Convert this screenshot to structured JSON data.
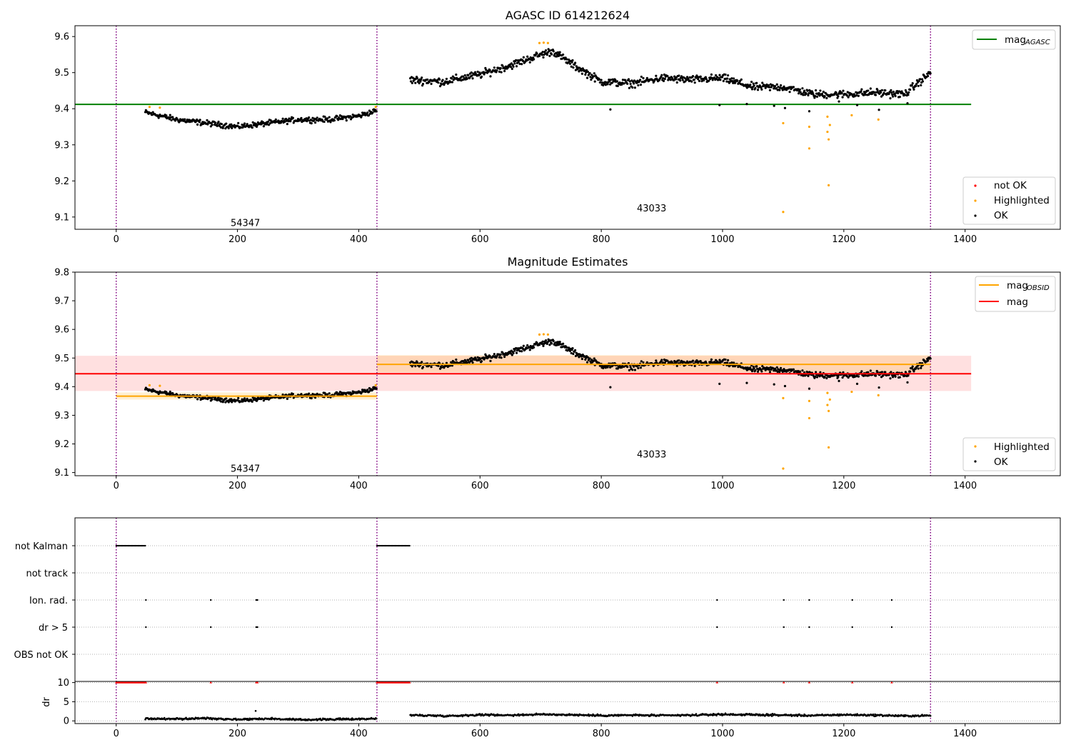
{
  "chart_data": [
    {
      "type": "scatter",
      "title": "AGASC ID 614212624",
      "xlim": [
        -68,
        1557
      ],
      "ylim": [
        9.066,
        9.63
      ],
      "xticks": [
        0,
        200,
        400,
        600,
        800,
        1000,
        1200,
        1400
      ],
      "yticks": [
        9.1,
        9.2,
        9.3,
        9.4,
        9.5,
        9.6
      ],
      "obsid_boundaries": [
        0,
        430,
        1343
      ],
      "obsid_labels": [
        {
          "text": "54347",
          "x": 213,
          "y": 9.085
        },
        {
          "text": "43033",
          "x": 883,
          "y": 9.125
        }
      ],
      "reference_lines": [
        {
          "name": "mag_AGASC",
          "value": 9.412,
          "x_range": [
            -68,
            1410
          ],
          "color": "#008000"
        }
      ],
      "legend_top": [
        {
          "label": "mag",
          "sub": "AGASC",
          "color": "#008000",
          "kind": "line"
        }
      ],
      "legend_bottom": [
        {
          "label": "not OK",
          "color": "#ff0000",
          "kind": "dot"
        },
        {
          "label": "Highlighted",
          "color": "#ffa500",
          "kind": "dot"
        },
        {
          "label": "OK",
          "color": "#000000",
          "kind": "dot"
        }
      ],
      "series": [
        {
          "name": "OK",
          "color": "#000000",
          "segments": [
            {
              "x": [
                48,
                100,
                150,
                200,
                250,
                300,
                350,
                400,
                430
              ],
              "y": [
                9.39,
                9.37,
                9.36,
                9.35,
                9.36,
                9.37,
                9.37,
                9.38,
                9.395
              ],
              "noise": 0.011
            },
            {
              "x": [
                485,
                540,
                600,
                650,
                700,
                720,
                750,
                800,
                850,
                900,
                950,
                1000,
                1050,
                1100,
                1150,
                1200,
                1250,
                1300,
                1343
              ],
              "y": [
                9.48,
                9.475,
                9.495,
                9.52,
                9.55,
                9.56,
                9.525,
                9.475,
                9.47,
                9.485,
                9.48,
                9.485,
                9.46,
                9.46,
                9.44,
                9.44,
                9.445,
                9.44,
                9.5
              ],
              "noise": 0.016
            }
          ]
        },
        {
          "name": "Highlighted",
          "color": "#ffa500",
          "points": [
            [
              55,
              9.405
            ],
            [
              72,
              9.403
            ],
            [
              428,
              9.405
            ],
            [
              698,
              9.582
            ],
            [
              705,
              9.583
            ],
            [
              712,
              9.582
            ],
            [
              1100,
              9.36
            ],
            [
              1143,
              9.35
            ],
            [
              1143,
              9.29
            ],
            [
              1173,
              9.378
            ],
            [
              1173,
              9.336
            ],
            [
              1175,
              9.315
            ],
            [
              1177,
              9.355
            ],
            [
              1175,
              9.188
            ],
            [
              1100,
              9.114
            ],
            [
              1213,
              9.382
            ],
            [
              1257,
              9.37
            ]
          ]
        }
      ]
    },
    {
      "type": "scatter",
      "title": "Magnitude Estimates",
      "xlim": [
        -68,
        1557
      ],
      "ylim": [
        9.089,
        9.8
      ],
      "xticks": [
        0,
        200,
        400,
        600,
        800,
        1000,
        1200,
        1400
      ],
      "yticks": [
        9.1,
        9.2,
        9.3,
        9.4,
        9.5,
        9.6,
        9.7,
        9.8
      ],
      "obsid_boundaries": [
        0,
        430,
        1343
      ],
      "obsid_labels": [
        {
          "text": "54347",
          "x": 213,
          "y": 9.115
        },
        {
          "text": "43033",
          "x": 883,
          "y": 9.165
        }
      ],
      "reference_lines": [
        {
          "name": "mag",
          "value": 9.445,
          "band": [
            9.385,
            9.508
          ],
          "x_range": [
            -68,
            1410
          ],
          "color": "#ff0000"
        },
        {
          "name": "mag_OBSID",
          "value": 9.367,
          "band": [
            9.355,
            9.38
          ],
          "x_range": [
            0,
            430
          ],
          "color": "#ffa500"
        },
        {
          "name": "mag_OBSID",
          "value": 9.478,
          "band": [
            9.45,
            9.51
          ],
          "x_range": [
            430,
            1343
          ],
          "color": "#ffa500"
        }
      ],
      "legend_top": [
        {
          "label": "mag",
          "sub": "OBSID",
          "color": "#ffa500",
          "kind": "line"
        },
        {
          "label": "mag",
          "sub": "",
          "color": "#ff0000",
          "kind": "line"
        }
      ],
      "legend_bottom": [
        {
          "label": "Highlighted",
          "color": "#ffa500",
          "kind": "dot"
        },
        {
          "label": "OK",
          "color": "#000000",
          "kind": "dot"
        }
      ]
    },
    {
      "type": "scatter",
      "xlim": [
        -68,
        1557
      ],
      "xticks": [
        0,
        200,
        400,
        600,
        800,
        1000,
        1200,
        1400
      ],
      "flag_rows": [
        "not Kalman",
        "not track",
        "Ion. rad.",
        "dr > 5",
        "OBS not OK"
      ],
      "flags": {
        "not Kalman": [
          [
            0,
            48
          ],
          [
            430,
            485
          ]
        ],
        "not track": [],
        "Ion. rad.": [
          49,
          156,
          231,
          233,
          991,
          1101,
          1143,
          1214,
          1279
        ],
        "dr > 5": [
          49,
          156,
          231,
          233,
          991,
          1101,
          1143,
          1214,
          1279
        ],
        "OBS not OK": []
      },
      "dr": {
        "ylabel": "dr",
        "ylim": [
          -0.7,
          10.3
        ],
        "yticks": [
          0,
          5,
          10
        ],
        "clip_value": 10,
        "segments": [
          {
            "x": [
              48,
              100,
              150,
              200,
              250,
              300,
              350,
              400,
              430
            ],
            "y": [
              0.6,
              0.5,
              0.7,
              0.4,
              0.6,
              0.3,
              0.4,
              0.5,
              0.6
            ]
          },
          {
            "x": [
              485,
              550,
              600,
              650,
              700,
              750,
              800,
              850,
              900,
              950,
              1000,
              1050,
              1100,
              1150,
              1200,
              1250,
              1300,
              1343
            ],
            "y": [
              1.5,
              1.3,
              1.6,
              1.5,
              1.7,
              1.6,
              1.4,
              1.5,
              1.4,
              1.5,
              1.7,
              1.6,
              1.5,
              1.4,
              1.6,
              1.5,
              1.3,
              1.4
            ]
          }
        ],
        "outliers": [
          [
            230,
            2.6
          ]
        ],
        "clipped": [
          [
            0,
            48
          ],
          [
            430,
            485
          ]
        ],
        "clipped_points": [
          49,
          156,
          231,
          233,
          991,
          1101,
          1143,
          1214,
          1279
        ]
      }
    }
  ]
}
